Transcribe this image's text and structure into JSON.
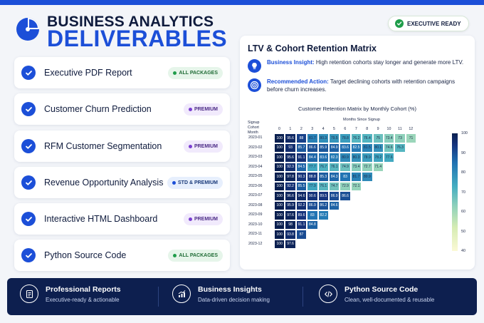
{
  "header": {
    "title_line1": "BUSINESS ANALYTICS",
    "title_line2": "DELIVERABLES",
    "badge": "EXECUTIVE READY",
    "logo_icon": "pie-chart-icon"
  },
  "deliverables": [
    {
      "label": "Executive PDF Report",
      "badge": "ALL PACKAGES",
      "badge_color": "green"
    },
    {
      "label": "Customer Churn Prediction",
      "badge": "PREMIUM",
      "badge_color": "purple"
    },
    {
      "label": "RFM Customer Segmentation",
      "badge": "PREMIUM",
      "badge_color": "purple"
    },
    {
      "label": "Revenue Opportunity Analysis",
      "badge": "STD & PREMIUM",
      "badge_color": "blue"
    },
    {
      "label": "Interactive HTML Dashboard",
      "badge": "PREMIUM",
      "badge_color": "purple"
    },
    {
      "label": "Python Source Code",
      "badge": "ALL PACKAGES",
      "badge_color": "green"
    }
  ],
  "panel": {
    "title": "LTV & Cohort Retention Matrix",
    "insight_label": "Business Insight:",
    "insight_text": "High retention cohorts stay longer and generate more LTV.",
    "action_label": "Recommended Action:",
    "action_text": "Target declining cohorts with retention campaigns before churn increases."
  },
  "chart_data": {
    "type": "heatmap",
    "title": "Customer Retention Matrix by Monthly Cohort (%)",
    "xlabel": "Months Since Signup",
    "ylabel": "Signup Cohort Month",
    "columns": [
      "0",
      "1",
      "2",
      "3",
      "4",
      "5",
      "6",
      "7",
      "8",
      "9",
      "10",
      "11",
      "12"
    ],
    "rows": [
      "2023-01",
      "2023-02",
      "2023-03",
      "2023-04",
      "2023-05",
      "2023-06",
      "2023-07",
      "2023-08",
      "2023-09",
      "2023-10",
      "2023-11",
      "2023-12"
    ],
    "values": [
      [
        100,
        95.6,
        88,
        81.7,
        80.3,
        79.5,
        78.8,
        76.2,
        76.4,
        75,
        73.4,
        73,
        71
      ],
      [
        100,
        93,
        85.7,
        86.6,
        85.9,
        84.9,
        83.6,
        82.5,
        81.5,
        80.1,
        74.6,
        76.3
      ],
      [
        100,
        95.6,
        91.1,
        84.4,
        83.6,
        82.3,
        80.9,
        80.3,
        78.9,
        78.2,
        77.6
      ],
      [
        100,
        92.3,
        84.5,
        77.7,
        76.7,
        76.1,
        74.9,
        73.4,
        72.7,
        71.4
      ],
      [
        100,
        97.8,
        90.3,
        88.8,
        85.3,
        84.3,
        83,
        81.7,
        80.9
      ],
      [
        100,
        92.2,
        85.5,
        77.9,
        76.1,
        74.7,
        72.9,
        72.1
      ],
      [
        100,
        96.6,
        94.6,
        90.6,
        89.5,
        86.9,
        86.6
      ],
      [
        100,
        95.9,
        92.2,
        86.9,
        86.2,
        84.6
      ],
      [
        100,
        97.6,
        89.6,
        83,
        82.2
      ],
      [
        100,
        98,
        91.1,
        84.8
      ],
      [
        100,
        93.8,
        87
      ],
      [
        100,
        97.6
      ]
    ],
    "colorbar": {
      "min": 40,
      "max": 100,
      "ticks": [
        100,
        90,
        80,
        70,
        60,
        50,
        40
      ]
    }
  },
  "features": [
    {
      "title": "Professional Reports",
      "subtitle": "Executive-ready & actionable",
      "icon": "report-icon"
    },
    {
      "title": "Business Insights",
      "subtitle": "Data-driven decision making",
      "icon": "trend-chart-icon"
    },
    {
      "title": "Python Source Code",
      "subtitle": "Clean, well-documented & reusable",
      "icon": "code-icon"
    }
  ]
}
